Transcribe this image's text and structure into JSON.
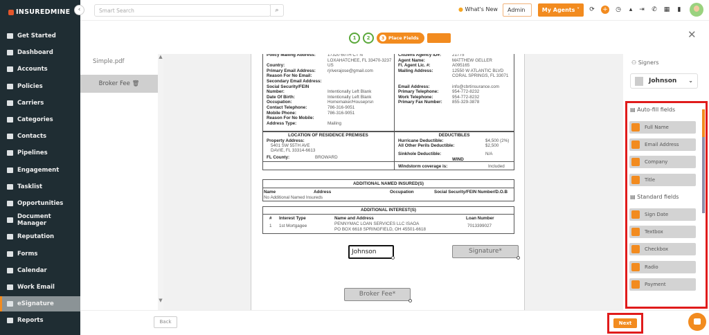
{
  "app": {
    "logo_bold": "INSUREDMINE",
    "logo_thin": "",
    "brand_color": "#f28b1f"
  },
  "sidebar": {
    "items": [
      {
        "label": "Get Started",
        "icon": "rocket-icon"
      },
      {
        "label": "Dashboard",
        "icon": "dashboard-icon"
      },
      {
        "label": "Accounts",
        "icon": "user-icon"
      },
      {
        "label": "Policies",
        "icon": "policy-icon"
      },
      {
        "label": "Carriers",
        "icon": "bank-icon"
      },
      {
        "label": "Categories",
        "icon": "list-icon"
      },
      {
        "label": "Contacts",
        "icon": "contact-icon"
      },
      {
        "label": "Pipelines",
        "icon": "filter-icon"
      },
      {
        "label": "Engagement",
        "icon": "megaphone-icon"
      },
      {
        "label": "Tasklist",
        "icon": "task-icon"
      },
      {
        "label": "Opportunities",
        "icon": "bar-chart-icon"
      },
      {
        "label": "Document Manager",
        "icon": "folder-icon"
      },
      {
        "label": "Reputation",
        "icon": "reputation-icon"
      },
      {
        "label": "Forms",
        "icon": "form-icon"
      },
      {
        "label": "Calendar",
        "icon": "calendar-icon"
      },
      {
        "label": "Work Email",
        "icon": "mail-icon"
      },
      {
        "label": "eSignature",
        "icon": "signature-icon",
        "active": true
      },
      {
        "label": "Reports",
        "icon": "line-chart-icon"
      }
    ]
  },
  "topbar": {
    "search_placeholder": "Smart Search",
    "whats_new": "What's New",
    "role": "Admin",
    "my_agents": "My Agents"
  },
  "steps": {
    "items": [
      "1",
      "2",
      "3",
      "4"
    ],
    "current_label": "Place Fields"
  },
  "files": {
    "file_name": "Simple.pdf",
    "selected_field": "Broker Fee"
  },
  "document": {
    "left_rows": [
      [
        "Policy Mailing Address:",
        "17320 60TH CT N"
      ],
      [
        "",
        "LOXAHATCHEE, FL 33470-3237"
      ],
      [
        "Country:",
        "US"
      ],
      [
        "Primary Email Address:",
        "rjriverajose@gmail.com"
      ],
      [
        "Reason For No Email:",
        ""
      ],
      [
        "Secondary Email Address:",
        ""
      ],
      [
        "Social Security/FEIN",
        ""
      ],
      [
        "Number:",
        "Intentionally Left Blank"
      ],
      [
        "Date Of Birth:",
        "Intentionally Left Blank"
      ],
      [
        "Occupation:",
        "Homemaker/Houseprsn"
      ],
      [
        "Contact Telephone:",
        "786-316-9051"
      ],
      [
        "Mobile Phone:",
        "786-316-9051"
      ],
      [
        "Reason For No Mobile:",
        ""
      ],
      [
        "Address Type:",
        "Mailing"
      ]
    ],
    "right_rows": [
      [
        "Citizens Agency ID#:",
        "21775"
      ],
      [
        "Agent Name:",
        "MATTHEW GELLER"
      ],
      [
        "Fl. Agent Lic. #:",
        "A095165"
      ],
      [
        "Mailing Address:",
        "12550 W ATLANTIC BLVD"
      ],
      [
        "",
        "CORAL SPRINGS, FL 33071"
      ],
      [
        "",
        ""
      ],
      [
        "Email Address:",
        "info@cbrtinsurance.com"
      ],
      [
        "Primary Telephone:",
        "954-772-8232"
      ],
      [
        "Work Telephone:",
        "954-772-8232"
      ],
      [
        "Primary Fax Number:",
        "855-329-3878"
      ]
    ],
    "location": {
      "title": "LOCATION OF RESIDENCE PREMISES",
      "property_label": "Property Address:",
      "addr1": "5401 SW 55TH AVE",
      "addr2": "DAVIE, FL 33314-6613",
      "county_label": "FL County:",
      "county": "BROWARD"
    },
    "deductibles": {
      "title": "DEDUCTIBLES",
      "hurricane_label": "Hurricane Deductible:",
      "hurricane": "$4,500 (2%)",
      "aop_label": "All Other Perils Deductible:",
      "aop": "$2,500",
      "sinkhole_label": "Sinkhole Deductible:",
      "sinkhole": "N/A",
      "wind": "WIND",
      "windstorm_label": "Windstorm coverage is:",
      "windstorm": "Included"
    },
    "named_insureds": {
      "title": "ADDITIONAL NAMED INSURED(S)",
      "columns": [
        "Name",
        "Address",
        "Occupation",
        "Social Security/FEIN Number/D.O.B"
      ],
      "empty": "No Additional Named Insureds"
    },
    "interests": {
      "title": "ADDITIONAL INTEREST(S)",
      "columns": [
        "#",
        "Interest Type",
        "Name and Address",
        "Loan Number"
      ],
      "row": [
        "1",
        "1st Mortgagee",
        "PENNYMAC LOAN SERVICES LLC ISAOA",
        "7013399027"
      ],
      "row_addr": "PO BOX 6618 SPRINGFIELD, OH 45501-6618"
    },
    "fields": {
      "name": "Johnson",
      "signature": "Signature*",
      "broker_fee": "Broker Fee*"
    }
  },
  "right_panel": {
    "signers_label": "Signers",
    "signer": "Johnson",
    "autofill_title": "Auto-fill fields",
    "autofill": [
      "Full Name",
      "Email Address",
      "Company",
      "Title"
    ],
    "standard_title": "Standard fields",
    "standard": [
      "Sign Date",
      "Textbox",
      "Checkbox",
      "Radio",
      "Payment"
    ]
  },
  "bottom": {
    "back": "Back",
    "next": "Next"
  }
}
